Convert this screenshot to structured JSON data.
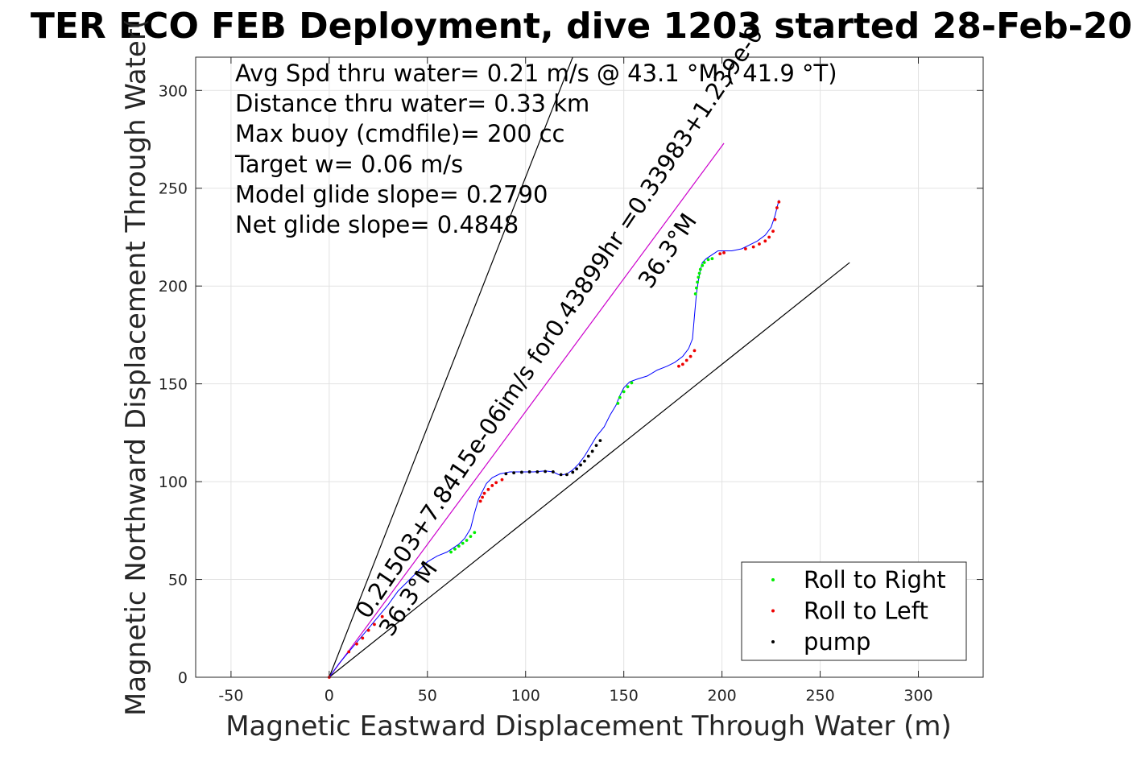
{
  "chart_data": {
    "type": "scatter",
    "title": "TER ECO FEB Deployment, dive 1203 started 28-Feb-20",
    "xlabel": "Magnetic Eastward Displacement Through Water (m)",
    "ylabel": "Magnetic Northward Displacement Through Water(",
    "xlim": [
      -68,
      333
    ],
    "ylim": [
      0,
      317
    ],
    "xticks": [
      -50,
      0,
      50,
      100,
      150,
      200,
      250,
      300
    ],
    "xtick_labels": [
      "-50",
      "0",
      "50",
      "100",
      "150",
      "200",
      "250",
      "300"
    ],
    "yticks": [
      0,
      50,
      100,
      150,
      200,
      250,
      300
    ],
    "ytick_labels": [
      "0",
      "50",
      "100",
      "150",
      "200",
      "250",
      "300"
    ],
    "grid": true,
    "legend_position": "bottom-right",
    "annotations": [
      "Avg Spd thru water=  0.21 m/s @  43.1 °M ( 41.9 °T)",
      "Distance thru water=  0.33 km",
      "Max buoy (cmdfile)= 200 cc",
      "Target w= 0.06 m/s",
      "Model glide slope= 0.2790",
      "Net glide slope= 0.4848"
    ],
    "rotated_labels": [
      {
        "text": "0.21503+7.8415e-06im/s for0.43899hr =0.33983+1.239e-0",
        "angle_deg": -56
      },
      {
        "text": "36.3°M",
        "angle_deg": -56
      },
      {
        "text": "36.3°M",
        "angle_deg": -56
      }
    ],
    "lines": [
      {
        "name": "wedge-left",
        "color": "#000000",
        "x": [
          0,
          124
        ],
        "y": [
          0,
          317
        ]
      },
      {
        "name": "wedge-right",
        "color": "#000000",
        "x": [
          0,
          265
        ],
        "y": [
          0,
          212
        ]
      },
      {
        "name": "mean-heading",
        "color": "#cc00cc",
        "x": [
          0,
          201
        ],
        "y": [
          0,
          273
        ]
      }
    ],
    "track": {
      "color": "#0000ff",
      "x": [
        0,
        5,
        10,
        15,
        20,
        25,
        30,
        35,
        40,
        45,
        50,
        55,
        60,
        63,
        66,
        69,
        72,
        74,
        76,
        78,
        80,
        83,
        87,
        92,
        98,
        104,
        110,
        114,
        117,
        119,
        121,
        124,
        127,
        130,
        133,
        136,
        140,
        143,
        146,
        148,
        150,
        153,
        157,
        162,
        167,
        172,
        176,
        180,
        183,
        185,
        186,
        187,
        188,
        189,
        190,
        192,
        195,
        198,
        201,
        205,
        210,
        214,
        218,
        222,
        225,
        227,
        228,
        229
      ],
      "y": [
        0,
        7,
        13,
        19,
        25,
        31,
        37,
        44,
        49,
        54,
        59,
        62,
        64,
        66,
        68,
        71,
        76,
        84,
        91,
        95,
        99,
        102,
        104,
        105,
        105,
        105,
        105.5,
        105,
        103.5,
        103.5,
        104,
        106,
        109,
        113,
        118,
        123,
        128,
        134,
        139,
        144,
        148,
        151,
        152.5,
        154,
        157,
        159,
        161,
        164,
        168,
        173,
        185,
        196,
        203,
        208,
        212,
        214,
        216,
        218,
        218,
        218,
        219,
        221,
        223,
        226,
        230,
        236,
        240,
        244
      ]
    },
    "series": [
      {
        "name": "Roll to Right",
        "color": "#00ee00",
        "x": [
          62,
          64,
          66,
          68,
          70,
          72,
          74,
          147,
          148,
          150,
          152,
          154,
          186.5,
          187,
          187.5,
          188,
          188.5,
          189,
          190,
          191,
          193,
          195
        ],
        "y": [
          64,
          65.5,
          67,
          68.5,
          70,
          72,
          74,
          140,
          143,
          146,
          148.5,
          150.5,
          196,
          199,
          202,
          204.5,
          206.5,
          208.5,
          210.5,
          212,
          213.5,
          214
        ]
      },
      {
        "name": "Roll to Left",
        "color": "#ee0000",
        "x": [
          0,
          10,
          14,
          17,
          20,
          23,
          27,
          77,
          78,
          79,
          81,
          83,
          85,
          88,
          178,
          180,
          182,
          184,
          186,
          199,
          201,
          212,
          216,
          219,
          222,
          224,
          226,
          227,
          228,
          229
        ],
        "y": [
          0,
          13,
          17,
          20,
          24,
          27,
          31,
          90,
          92,
          94,
          96,
          98,
          99.5,
          101,
          159,
          160,
          162,
          164,
          167,
          216.5,
          217,
          219,
          220,
          221.5,
          223,
          225,
          228,
          234,
          240,
          243
        ]
      },
      {
        "name": "pump",
        "color": "#000000",
        "x": [
          90,
          94,
          98,
          102,
          106,
          110,
          114,
          118,
          121,
          124,
          126,
          128,
          130,
          132,
          134,
          136,
          138
        ],
        "y": [
          104,
          104.5,
          104.8,
          105,
          105,
          105.2,
          105,
          103.6,
          103.6,
          104.8,
          106.5,
          108.5,
          110.5,
          113,
          115.5,
          118.5,
          121
        ]
      }
    ]
  }
}
